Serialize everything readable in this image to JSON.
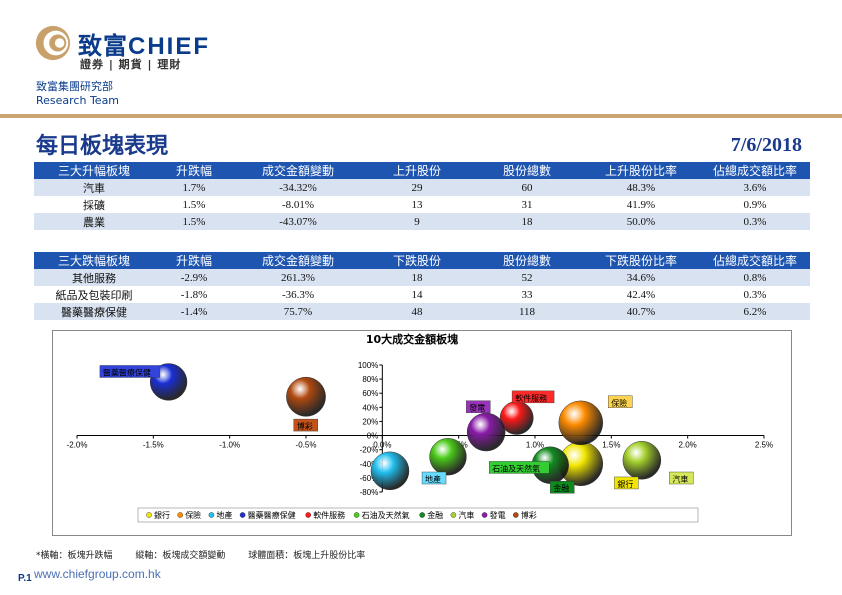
{
  "header": {
    "brand_cn": "致富",
    "brand_en": "CHIEF",
    "tagline": "證券 | 期貨 | 理財",
    "group_cn": "致富集團研究部",
    "group_en": "Research Team"
  },
  "page": {
    "title": "每日板塊表現",
    "date": "7/6/2018"
  },
  "top_table": {
    "headers": [
      "三大升幅板塊",
      "升跌幅",
      "成交金額變動",
      "上升股份",
      "股份總數",
      "上升股份比率",
      "佔總成交額比率"
    ],
    "rows": [
      [
        "汽車",
        "1.7%",
        "-34.32%",
        "29",
        "60",
        "48.3%",
        "3.6%"
      ],
      [
        "採礦",
        "1.5%",
        "-8.01%",
        "13",
        "31",
        "41.9%",
        "0.9%"
      ],
      [
        "農業",
        "1.5%",
        "-43.07%",
        "9",
        "18",
        "50.0%",
        "0.3%"
      ]
    ]
  },
  "bottom_table": {
    "headers": [
      "三大跌幅板塊",
      "升跌幅",
      "成交金額變動",
      "下跌股份",
      "股份總數",
      "下跌股份比率",
      "佔總成交額比率"
    ],
    "rows": [
      [
        "其他服務",
        "-2.9%",
        "261.3%",
        "18",
        "52",
        "34.6%",
        "0.8%"
      ],
      [
        "紙品及包裝印刷",
        "-1.8%",
        "-36.3%",
        "14",
        "33",
        "42.4%",
        "0.3%"
      ],
      [
        "醫藥醫療保健",
        "-1.4%",
        "75.7%",
        "48",
        "118",
        "40.7%",
        "6.2%"
      ]
    ]
  },
  "chart_data": {
    "type": "bubble",
    "title": "10大成交金額板塊",
    "xlim": [
      -2.0,
      2.5
    ],
    "ylim": [
      -80,
      100
    ],
    "x_ticks": [
      "-2.0%",
      "-1.5%",
      "-1.0%",
      "-0.5%",
      "0.0%",
      "0.5%",
      "1.0%",
      "1.5%",
      "2.0%",
      "2.5%"
    ],
    "y_ticks": [
      "-80%",
      "-60%",
      "-40%",
      "-20%",
      "0%",
      "20%",
      "40%",
      "60%",
      "80%",
      "100%"
    ],
    "legend_position": "bottom",
    "series": [
      {
        "name": "銀行",
        "x": 1.3,
        "y": -40,
        "size": 1.0,
        "color": "#f2e600",
        "label_color": "#f2e600"
      },
      {
        "name": "保險",
        "x": 1.3,
        "y": 18,
        "size": 1.0,
        "color": "#ff8c00",
        "label_color": "#ffd34d"
      },
      {
        "name": "地產",
        "x": 0.05,
        "y": -50,
        "size": 0.75,
        "color": "#22c0f0",
        "label_color": "#66ddff"
      },
      {
        "name": "醫藥醫療保健",
        "x": -1.4,
        "y": 76,
        "size": 0.7,
        "color": "#1a2fd6",
        "label_color": "#3344dd"
      },
      {
        "name": "軟件服務",
        "x": 0.88,
        "y": 25,
        "size": 0.55,
        "color": "#ff1a1a",
        "label_color": "#ff2a2a"
      },
      {
        "name": "石油及天然氣",
        "x": 0.43,
        "y": -30,
        "size": 0.7,
        "color": "#4ccc1a",
        "label_color": "#33cc33"
      },
      {
        "name": "金融",
        "x": 1.1,
        "y": -42,
        "size": 0.7,
        "color": "#138a20",
        "label_color": "#0f8a1f"
      },
      {
        "name": "汽車",
        "x": 1.7,
        "y": -35,
        "size": 0.75,
        "color": "#a5d22d",
        "label_color": "#d6e85a"
      },
      {
        "name": "發電",
        "x": 0.68,
        "y": 5,
        "size": 0.75,
        "color": "#8a1ca8",
        "label_color": "#9933bb"
      },
      {
        "name": "博彩",
        "x": -0.5,
        "y": 55,
        "size": 0.8,
        "color": "#b24a10",
        "label_color": "#c0521a"
      }
    ],
    "labels": [
      {
        "name": "醫藥醫療保健",
        "lx": -1.85,
        "ly": 88
      },
      {
        "name": "博彩",
        "lx": -0.58,
        "ly": 12
      },
      {
        "name": "發電",
        "lx": 0.55,
        "ly": 38
      },
      {
        "name": "軟件服務",
        "lx": 0.85,
        "ly": 52
      },
      {
        "name": "保險",
        "lx": 1.48,
        "ly": 45
      },
      {
        "name": "石油及天然氣",
        "lx": 0.7,
        "ly": -48
      },
      {
        "name": "地產",
        "lx": 0.26,
        "ly": -63
      },
      {
        "name": "金融",
        "lx": 1.1,
        "ly": -76
      },
      {
        "name": "銀行",
        "lx": 1.52,
        "ly": -70
      },
      {
        "name": "汽車",
        "lx": 1.88,
        "ly": -63
      }
    ]
  },
  "footer": {
    "note": "*橫軸：板塊升跌幅        縱軸：板塊成交額變動        球體面積：板塊上升股份比率",
    "page": "P.1",
    "url": "www.chiefgroup.com.hk"
  }
}
